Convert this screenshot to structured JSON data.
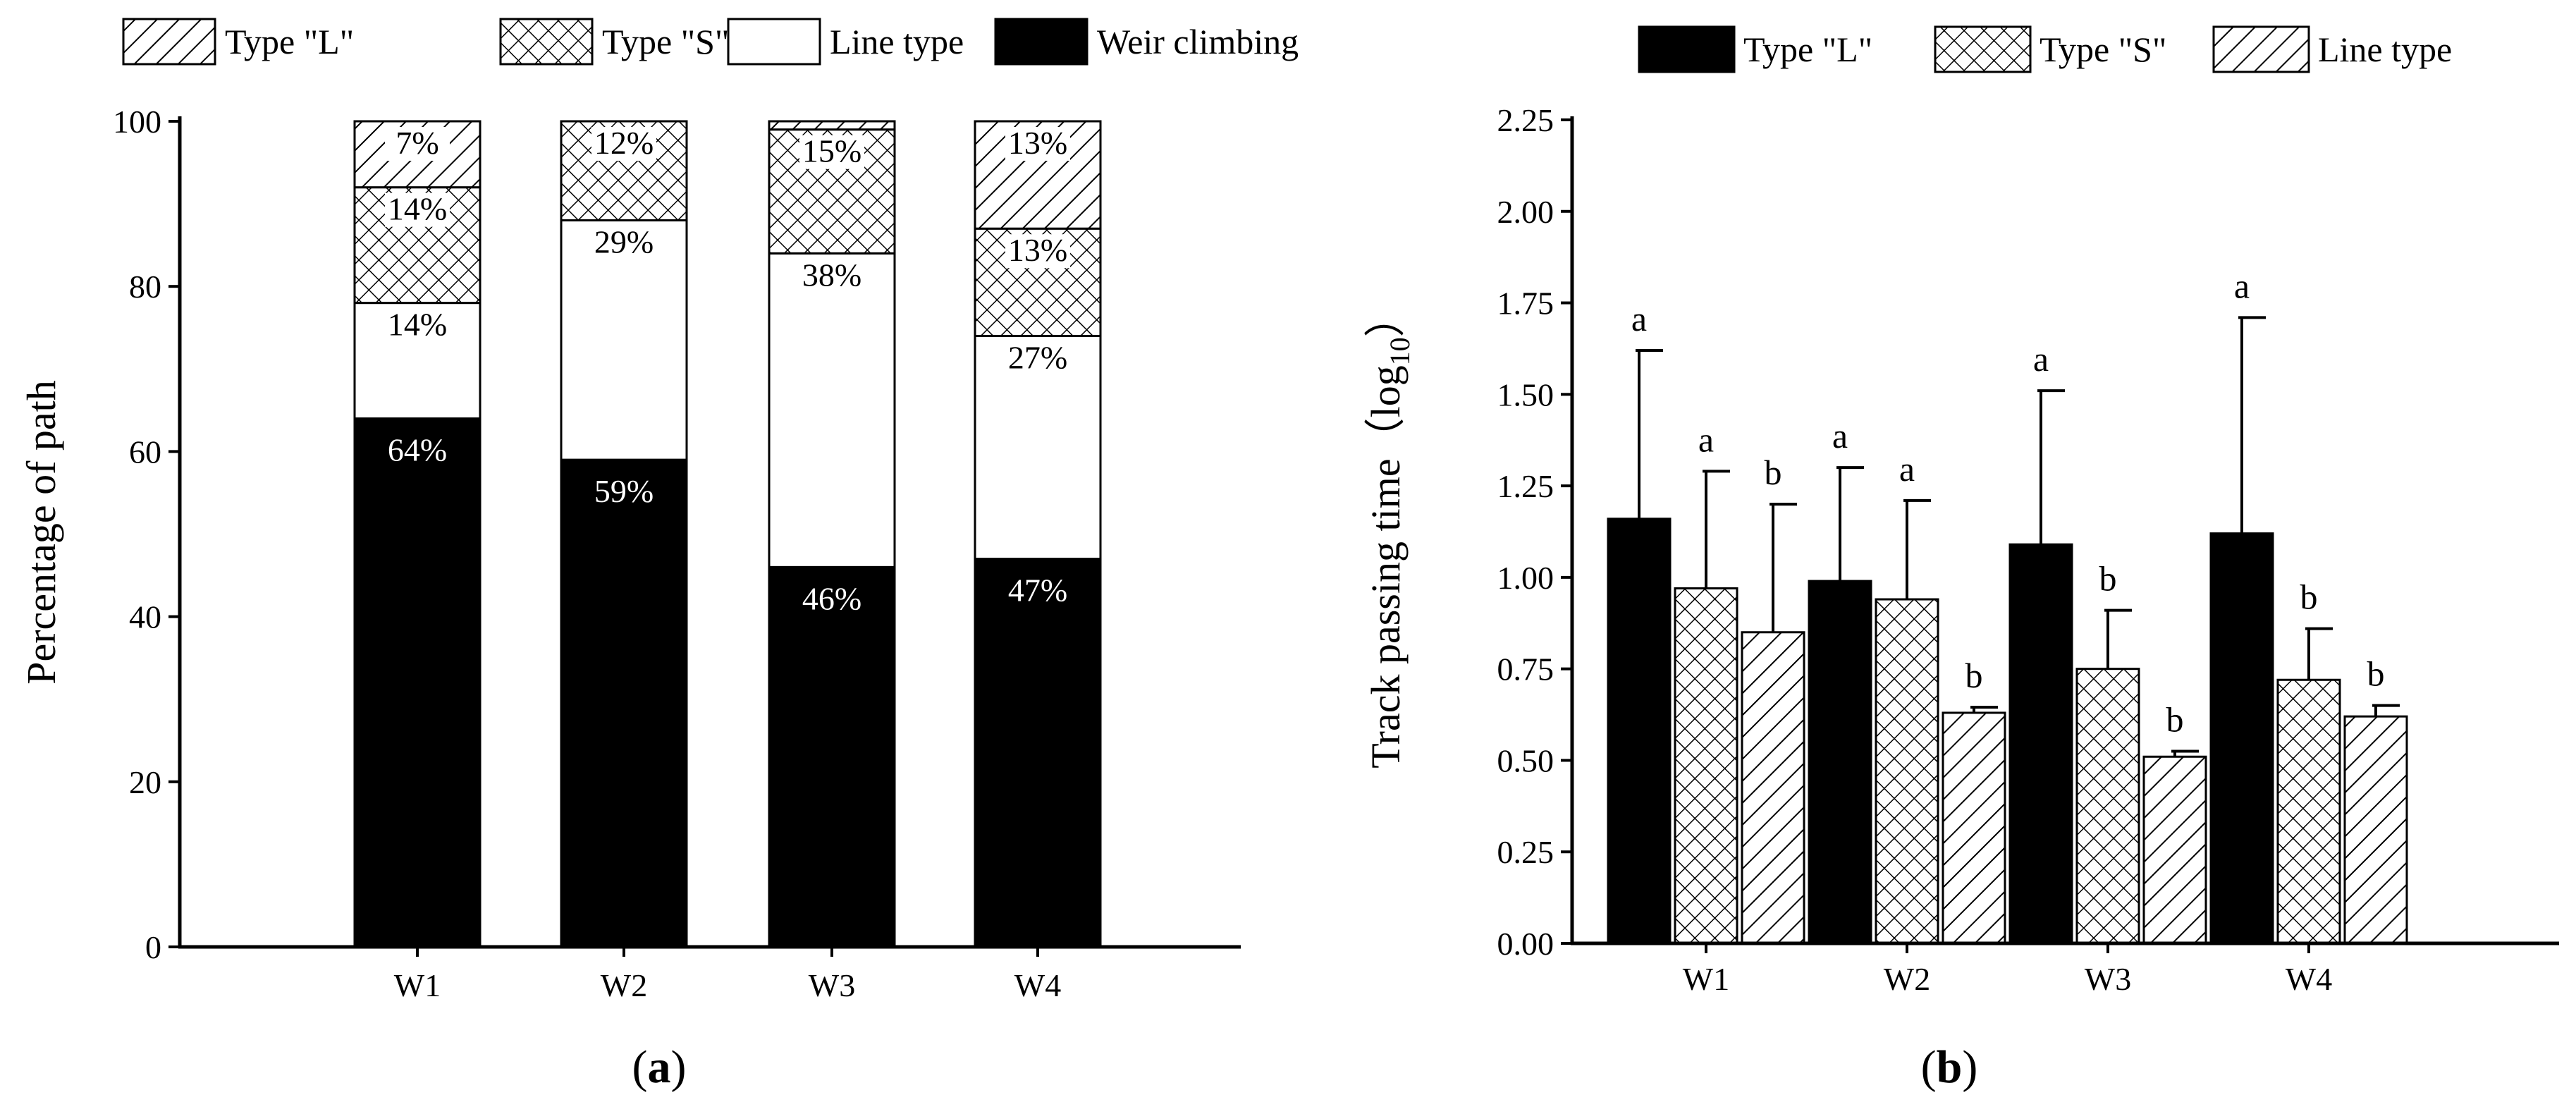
{
  "colors": {
    "ink": "#000000",
    "paper": "#ffffff"
  },
  "chart_data": [
    {
      "type": "bar",
      "stacked": true,
      "panel_label": "a",
      "categories": [
        "W1",
        "W2",
        "W3",
        "W4"
      ],
      "ylabel": "Percentage of path",
      "xlabel": "",
      "ylim": [
        0,
        100
      ],
      "yticks": [
        0,
        20,
        40,
        60,
        80,
        100
      ],
      "legend_position": "top",
      "legend": [
        {
          "name": "Type \"L\"",
          "pattern": "diag"
        },
        {
          "name": "Type \"S\"",
          "pattern": "cross"
        },
        {
          "name": "Line type",
          "pattern": "white"
        },
        {
          "name": "Weir climbing",
          "pattern": "black"
        }
      ],
      "series": [
        {
          "name": "Weir climbing",
          "pattern": "black",
          "values": [
            64,
            59,
            46,
            47
          ],
          "labels": [
            "64%",
            "59%",
            "46%",
            "47%"
          ]
        },
        {
          "name": "Line type",
          "pattern": "white",
          "values": [
            14,
            29,
            38,
            27
          ],
          "labels": [
            "14%",
            "29%",
            "38%",
            "27%"
          ]
        },
        {
          "name": "Type \"S\"",
          "pattern": "cross",
          "values": [
            14,
            12,
            15,
            13
          ],
          "labels": [
            "14%",
            "12%",
            "15%",
            "13%"
          ]
        },
        {
          "name": "Type \"L\"",
          "pattern": "diag",
          "values": [
            7,
            0,
            0,
            13
          ],
          "labels": [
            "7%",
            "",
            "",
            "13%"
          ]
        }
      ]
    },
    {
      "type": "bar",
      "grouped": true,
      "panel_label": "b",
      "categories": [
        "W1",
        "W2",
        "W3",
        "W4"
      ],
      "ylabel": "Track passing time（log",
      "ylabel_subscript": "10",
      "ylabel_close": "）",
      "xlabel": "",
      "ylim": [
        0,
        2.25
      ],
      "yticks": [
        "0.00",
        "0.25",
        "0.50",
        "0.75",
        "1.00",
        "1.25",
        "1.50",
        "1.75",
        "2.00",
        "2.25"
      ],
      "legend_position": "top-right",
      "legend": [
        {
          "name": "Type \"L\"",
          "pattern": "black"
        },
        {
          "name": "Type \"S\"",
          "pattern": "cross"
        },
        {
          "name": "Line type",
          "pattern": "diag"
        }
      ],
      "series": [
        {
          "name": "Type \"L\"",
          "pattern": "black",
          "values": [
            1.16,
            0.99,
            1.09,
            1.12
          ],
          "error": [
            0.46,
            0.31,
            0.42,
            0.59
          ],
          "letters": [
            "a",
            "a",
            "a",
            "a"
          ]
        },
        {
          "name": "Type \"S\"",
          "pattern": "cross",
          "values": [
            0.97,
            0.94,
            0.75,
            0.72
          ],
          "error": [
            0.32,
            0.27,
            0.16,
            0.14
          ],
          "letters": [
            "a",
            "a",
            "b",
            "b"
          ]
        },
        {
          "name": "Line type",
          "pattern": "diag",
          "values": [
            0.85,
            0.63,
            0.51,
            0.62
          ],
          "error": [
            0.35,
            0.015,
            0.015,
            0.03
          ],
          "letters": [
            "b",
            "b",
            "b",
            "b"
          ]
        }
      ]
    }
  ]
}
